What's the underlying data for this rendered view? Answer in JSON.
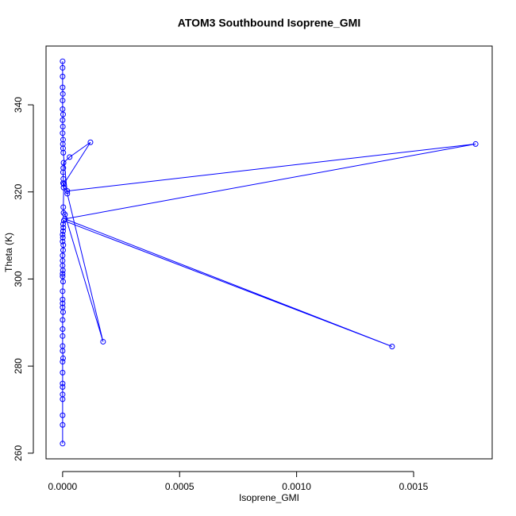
{
  "chart_data": {
    "type": "line",
    "title": "ATOM3 Southbound Isoprene_GMI",
    "x_label": "Isoprene_GMI",
    "y_label": "Theta (K)",
    "color": "#0000ff",
    "xlim": [
      -7.08e-05,
      0.0018358
    ],
    "ylim": [
      258.7,
      353.5
    ],
    "xticks": [
      {
        "value": 0,
        "label": "0.0000"
      },
      {
        "value": 0.0005,
        "label": "0.0005"
      },
      {
        "value": 0.001,
        "label": "0.0010"
      },
      {
        "value": 0.0015,
        "label": "0.0015"
      }
    ],
    "yticks": [
      260,
      280,
      300,
      320,
      340
    ],
    "series": [
      {
        "name": "Isoprene_GMI",
        "x": [
          0,
          0,
          0,
          0,
          0,
          0,
          0,
          0,
          0,
          2e-06,
          0,
          0,
          0,
          0,
          0,
          2e-06,
          0,
          0,
          0,
          0,
          2e-06,
          0,
          0,
          1e-06,
          0,
          0,
          0,
          2e-06,
          3e-06,
          0,
          1e-06,
          0,
          2e-06,
          3e-06,
          2e-06,
          5e-06,
          0.001408,
          1e-05,
          0.001765,
          2e-05,
          4e-06,
          2e-06,
          3e-06,
          2e-06,
          3e-06,
          4e-06,
          3e-05,
          0.000119,
          5e-06,
          3e-06,
          4e-06,
          1e-05,
          0.000173,
          2e-05,
          3e-06,
          2e-06,
          1e-06,
          2e-06,
          0,
          1e-06,
          0,
          2e-06,
          0,
          0,
          1e-06,
          0,
          0,
          0,
          0
        ],
        "values": [
          262.2,
          266.5,
          268.7,
          272.4,
          273.5,
          275.2,
          276.0,
          278.5,
          281.0,
          281.8,
          283.5,
          284.6,
          286.9,
          288.5,
          290.6,
          292.4,
          293.5,
          294.4,
          295.3,
          297.2,
          299.4,
          300.6,
          301.2,
          302.0,
          303.1,
          304.2,
          305.4,
          306.6,
          307.8,
          308.6,
          309.5,
          310.2,
          311.0,
          311.8,
          312.6,
          313.4,
          284.5,
          313.8,
          331.0,
          320.2,
          321.0,
          322.0,
          323.0,
          324.5,
          325.5,
          326.7,
          328.0,
          331.4,
          321.8,
          316.5,
          315.2,
          314.8,
          285.6,
          319.6,
          329.0,
          330.0,
          331.0,
          332.0,
          333.5,
          335.0,
          336.5,
          337.8,
          339.0,
          341.0,
          342.5,
          344.0,
          346.5,
          348.5,
          350.0
        ]
      }
    ]
  }
}
